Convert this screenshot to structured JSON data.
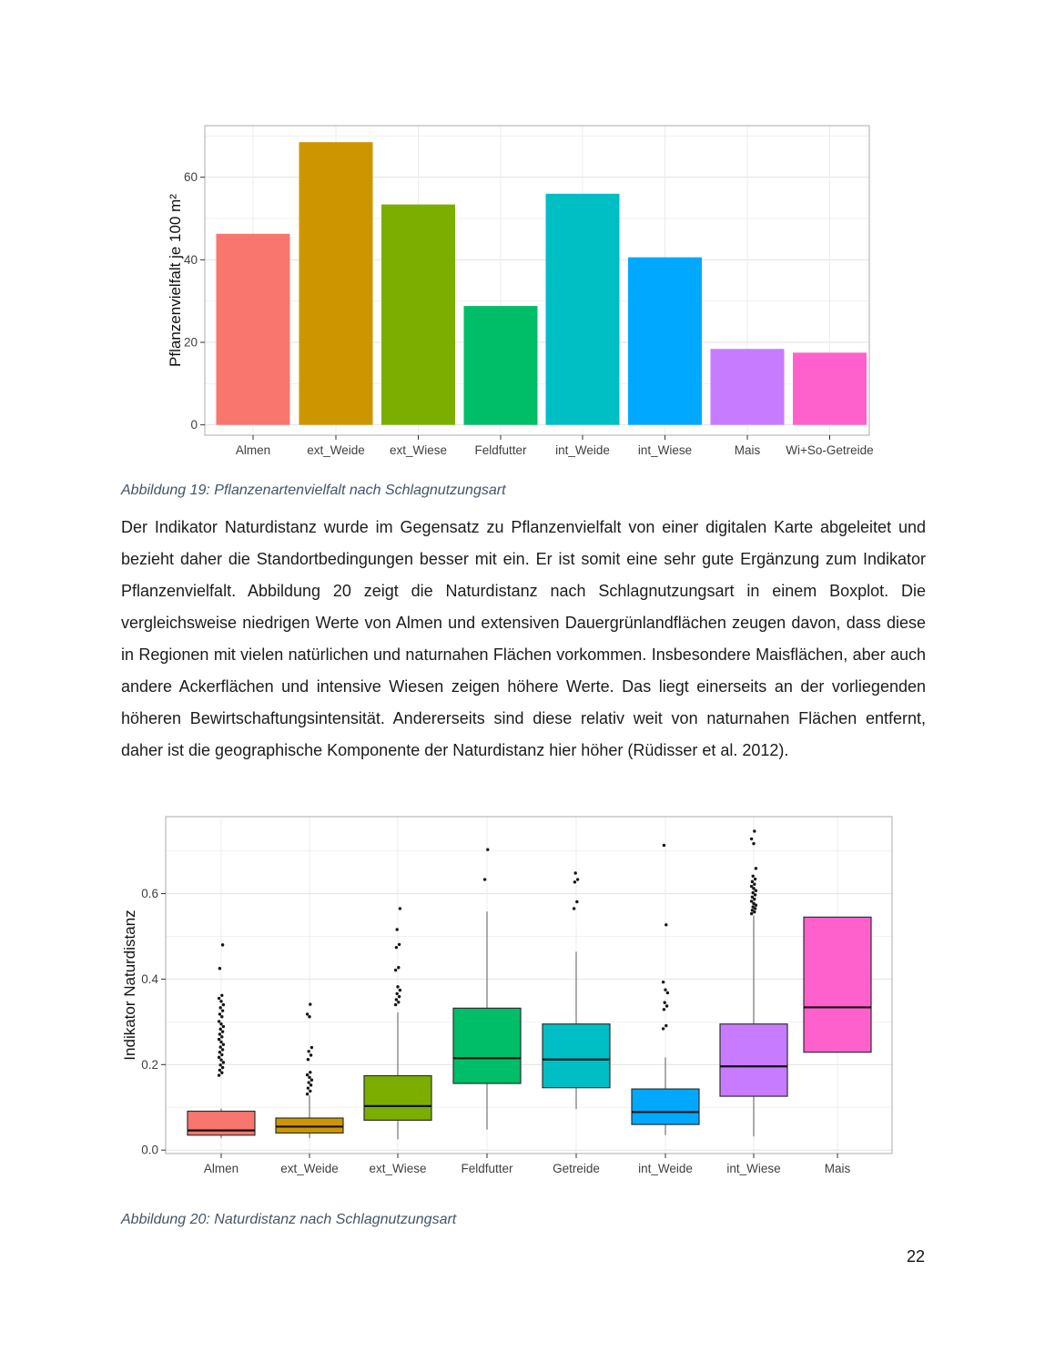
{
  "page": {
    "number": "22"
  },
  "figure19": {
    "caption": "Abbildung 19: Pflanzenartenvielfalt nach Schlagnutzungsart"
  },
  "figure20": {
    "caption": "Abbildung 20: Naturdistanz nach Schlagnutzungsart"
  },
  "body": {
    "text": "Der Indikator Naturdistanz wurde im Gegensatz zu Pflanzenvielfalt von einer digitalen Karte abgeleitet und bezieht daher die Standortbedingungen besser mit ein. Er ist somit eine sehr gute Ergänzung zum Indikator Pflanzenvielfalt. Abbildung 20 zeigt die Naturdistanz nach Schlagnutzungsart in einem Boxplot. Die vergleichsweise niedrigen Werte von Almen und extensiven Dauergrünlandflächen zeugen davon, dass diese in Regionen mit vielen natürlichen und naturnahen Flächen vorkommen. Insbesondere Maisflächen, aber auch andere Ackerflächen und intensive Wiesen zeigen höhere Werte. Das liegt einerseits an der vorliegenden höheren Bewirtschaftungsintensität. Andererseits sind diese relativ weit von naturnahen Flächen entfernt, daher ist die geographische Komponente der Naturdistanz hier höher (Rüdisser et al. 2012)."
  },
  "chart_data": [
    {
      "id": "fig19",
      "type": "bar",
      "title": "",
      "categories": [
        "Almen",
        "ext_Weide",
        "ext_Wiese",
        "Feldfutter",
        "int_Weide",
        "int_Wiese",
        "Mais",
        "Wi+So-Getreide"
      ],
      "values": [
        46.3,
        68.5,
        53.4,
        28.8,
        56.0,
        40.6,
        18.4,
        17.5
      ],
      "colors": [
        "#F8766D",
        "#CD9600",
        "#7CAE00",
        "#00BE67",
        "#00BFC4",
        "#00A9FF",
        "#C77CFF",
        "#FF61CC"
      ],
      "xlabel": "",
      "ylabel": "Pflanzenvielfalt je 100 m²",
      "yticks": [
        0,
        20,
        40,
        60
      ],
      "ytick_labels": [
        "0",
        "20",
        "40",
        "60"
      ],
      "ylim": [
        -2.5,
        72.5
      ],
      "grid": "major+minor, light grey on white panel",
      "legend": "none"
    },
    {
      "id": "fig20",
      "type": "boxplot",
      "title": "",
      "categories": [
        "Almen",
        "ext_Weide",
        "ext_Wiese",
        "Feldfutter",
        "Getreide",
        "int_Weide",
        "int_Wiese",
        "Mais"
      ],
      "xlabel": "",
      "ylabel": "Indikator Naturdistanz",
      "yticks": [
        0,
        0.2,
        0.4,
        0.6
      ],
      "ytick_labels": [
        "0.0",
        "0.2",
        "0.4",
        "0.6"
      ],
      "ylim": [
        -0.008,
        0.78
      ],
      "grid": "major+minor, light grey on white panel",
      "legend": "none",
      "series": [
        {
          "name": "Almen",
          "color": "#F8766D",
          "whisker_low": 0.028,
          "q1": 0.035,
          "median": 0.046,
          "q3": 0.091,
          "whisker_high": 0.097,
          "outliers": [
            0.175,
            0.181,
            0.187,
            0.193,
            0.199,
            0.205,
            0.211,
            0.217,
            0.223,
            0.229,
            0.235,
            0.241,
            0.247,
            0.253,
            0.259,
            0.265,
            0.271,
            0.277,
            0.283,
            0.289,
            0.295,
            0.301,
            0.312,
            0.318,
            0.326,
            0.333,
            0.34,
            0.348,
            0.355,
            0.362,
            0.425,
            0.48
          ]
        },
        {
          "name": "ext_Weide",
          "color": "#CD9600",
          "whisker_low": 0.028,
          "q1": 0.04,
          "median": 0.055,
          "q3": 0.075,
          "whisker_high": 0.128,
          "outliers": [
            0.131,
            0.138,
            0.145,
            0.152,
            0.158,
            0.164,
            0.17,
            0.176,
            0.182,
            0.212,
            0.222,
            0.231,
            0.24,
            0.312,
            0.318,
            0.341
          ]
        },
        {
          "name": "ext_Wiese",
          "color": "#7CAE00",
          "whisker_low": 0.025,
          "q1": 0.07,
          "median": 0.103,
          "q3": 0.174,
          "whisker_high": 0.322,
          "outliers": [
            0.34,
            0.346,
            0.352,
            0.359,
            0.366,
            0.374,
            0.382,
            0.421,
            0.427,
            0.474,
            0.481,
            0.516,
            0.565
          ]
        },
        {
          "name": "Feldfutter",
          "color": "#00BE67",
          "whisker_low": 0.048,
          "q1": 0.156,
          "median": 0.215,
          "q3": 0.332,
          "whisker_high": 0.558,
          "outliers": [
            0.633,
            0.703
          ]
        },
        {
          "name": "Getreide",
          "color": "#00BFC4",
          "whisker_low": 0.096,
          "q1": 0.146,
          "median": 0.212,
          "q3": 0.295,
          "whisker_high": 0.464,
          "outliers": [
            0.565,
            0.581,
            0.627,
            0.633,
            0.648
          ]
        },
        {
          "name": "int_Weide",
          "color": "#00A9FF",
          "whisker_low": 0.035,
          "q1": 0.06,
          "median": 0.089,
          "q3": 0.143,
          "whisker_high": 0.217,
          "outliers": [
            0.284,
            0.291,
            0.329,
            0.337,
            0.345,
            0.368,
            0.375,
            0.393,
            0.527,
            0.713
          ]
        },
        {
          "name": "int_Wiese",
          "color": "#C77CFF",
          "whisker_low": 0.032,
          "q1": 0.126,
          "median": 0.196,
          "q3": 0.295,
          "whisker_high": 0.549,
          "outliers": [
            0.553,
            0.557,
            0.561,
            0.565,
            0.569,
            0.573,
            0.577,
            0.582,
            0.587,
            0.592,
            0.597,
            0.602,
            0.607,
            0.612,
            0.617,
            0.622,
            0.628,
            0.634,
            0.641,
            0.659,
            0.717,
            0.728,
            0.746
          ]
        },
        {
          "name": "Mais",
          "color": "#FF61CC",
          "whisker_low": 0.229,
          "q1": 0.229,
          "median": 0.334,
          "q3": 0.545,
          "whisker_high": 0.545,
          "outliers": []
        }
      ]
    }
  ]
}
